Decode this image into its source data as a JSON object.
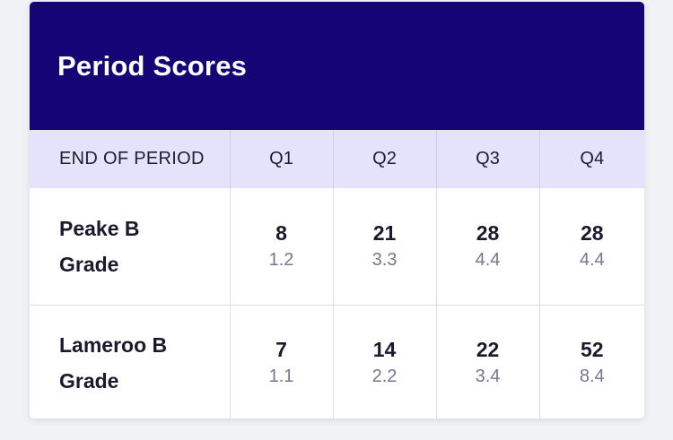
{
  "card": {
    "title": "Period Scores"
  },
  "table": {
    "header": {
      "label": "END OF PERIOD",
      "periods": [
        "Q1",
        "Q2",
        "Q3",
        "Q4"
      ]
    },
    "rows": [
      {
        "team": "Peake B Grade",
        "scores": [
          {
            "points": "8",
            "detail": "1.2"
          },
          {
            "points": "21",
            "detail": "3.3"
          },
          {
            "points": "28",
            "detail": "4.4"
          },
          {
            "points": "28",
            "detail": "4.4"
          }
        ]
      },
      {
        "team": "Lameroo B Grade",
        "scores": [
          {
            "points": "7",
            "detail": "1.1"
          },
          {
            "points": "14",
            "detail": "2.2"
          },
          {
            "points": "22",
            "detail": "3.4"
          },
          {
            "points": "52",
            "detail": "8.4"
          }
        ]
      }
    ]
  },
  "colors": {
    "header_background": "#140476",
    "period_row_background": "#e4e3fb",
    "page_background": "#f1f2f6"
  }
}
